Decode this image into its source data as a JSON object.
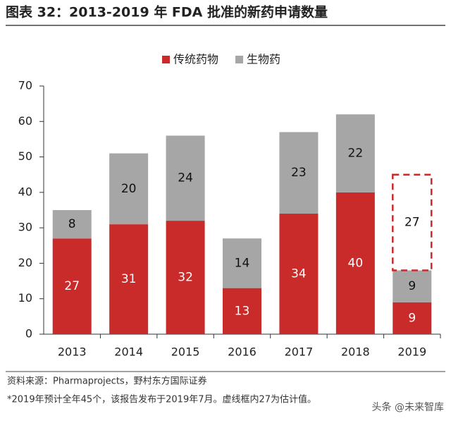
{
  "chart_data": {
    "type": "stacked_bar",
    "title": "图表 32：2013-2019 年 FDA 批准的新药申请数量",
    "categories": [
      "2013",
      "2014",
      "2015",
      "2016",
      "2017",
      "2018",
      "2019"
    ],
    "series": [
      {
        "name": "传统药物",
        "color": "#c92a2a",
        "values": [
          27,
          31,
          32,
          13,
          34,
          40,
          9
        ]
      },
      {
        "name": "生物药",
        "color": "#a6a6a6",
        "values": [
          8,
          20,
          24,
          14,
          23,
          22,
          9
        ]
      }
    ],
    "estimate_values": [
      null,
      null,
      null,
      null,
      null,
      null,
      27
    ],
    "estimate_color": "#c92a2a",
    "ylim": [
      0,
      70
    ],
    "yticks": [
      0,
      10,
      20,
      30,
      40,
      50,
      60,
      70
    ],
    "grid": false,
    "legend": "top",
    "source": "资料来源：Pharmaprojects，野村东方国际证券",
    "note": "*2019年预计全年45个，该报告发布于2019年7月。虚线框内27为估计值。",
    "watermark": "头条 @未来智库"
  }
}
